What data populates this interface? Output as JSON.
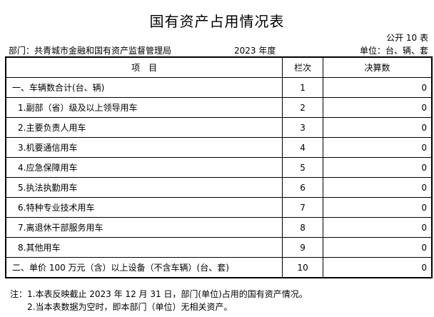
{
  "title": "国有资产占用情况表",
  "form_code": "公开 10 表",
  "department": "部门：共青城市金融和国有资产监督管理局",
  "year": "2023 年度",
  "unit": "单位：台、辆、套",
  "table": {
    "headers": [
      "项　目",
      "栏次",
      "决算数"
    ],
    "rows": [
      {
        "item": "一、车辆数合计(台、辆)",
        "no": "1",
        "value": "0",
        "indent": false
      },
      {
        "item": "1.副部（省）级及以上领导用车",
        "no": "2",
        "value": "0",
        "indent": true
      },
      {
        "item": "2.主要负责人用车",
        "no": "3",
        "value": "0",
        "indent": true
      },
      {
        "item": "3.机要通信用车",
        "no": "4",
        "value": "0",
        "indent": true
      },
      {
        "item": "4.应急保障用车",
        "no": "5",
        "value": "0",
        "indent": true
      },
      {
        "item": "5.执法执勤用车",
        "no": "6",
        "value": "0",
        "indent": true
      },
      {
        "item": "6.特种专业技术用车",
        "no": "7",
        "value": "0",
        "indent": true
      },
      {
        "item": "7.离退休干部服务用车",
        "no": "8",
        "value": "0",
        "indent": true
      },
      {
        "item": "8.其他用车",
        "no": "9",
        "value": "0",
        "indent": true
      },
      {
        "item": "二、单价 100 万元（含）以上设备（不含车辆）(台、套)",
        "no": "10",
        "value": "0",
        "indent": false
      }
    ]
  },
  "notes": [
    "注：1.本表反映截止 2023 年 12 月 31 日，部门(单位)占用的国有资产情况。",
    "2.当本表数据为空时，即本部门（单位）无相关资产。"
  ]
}
